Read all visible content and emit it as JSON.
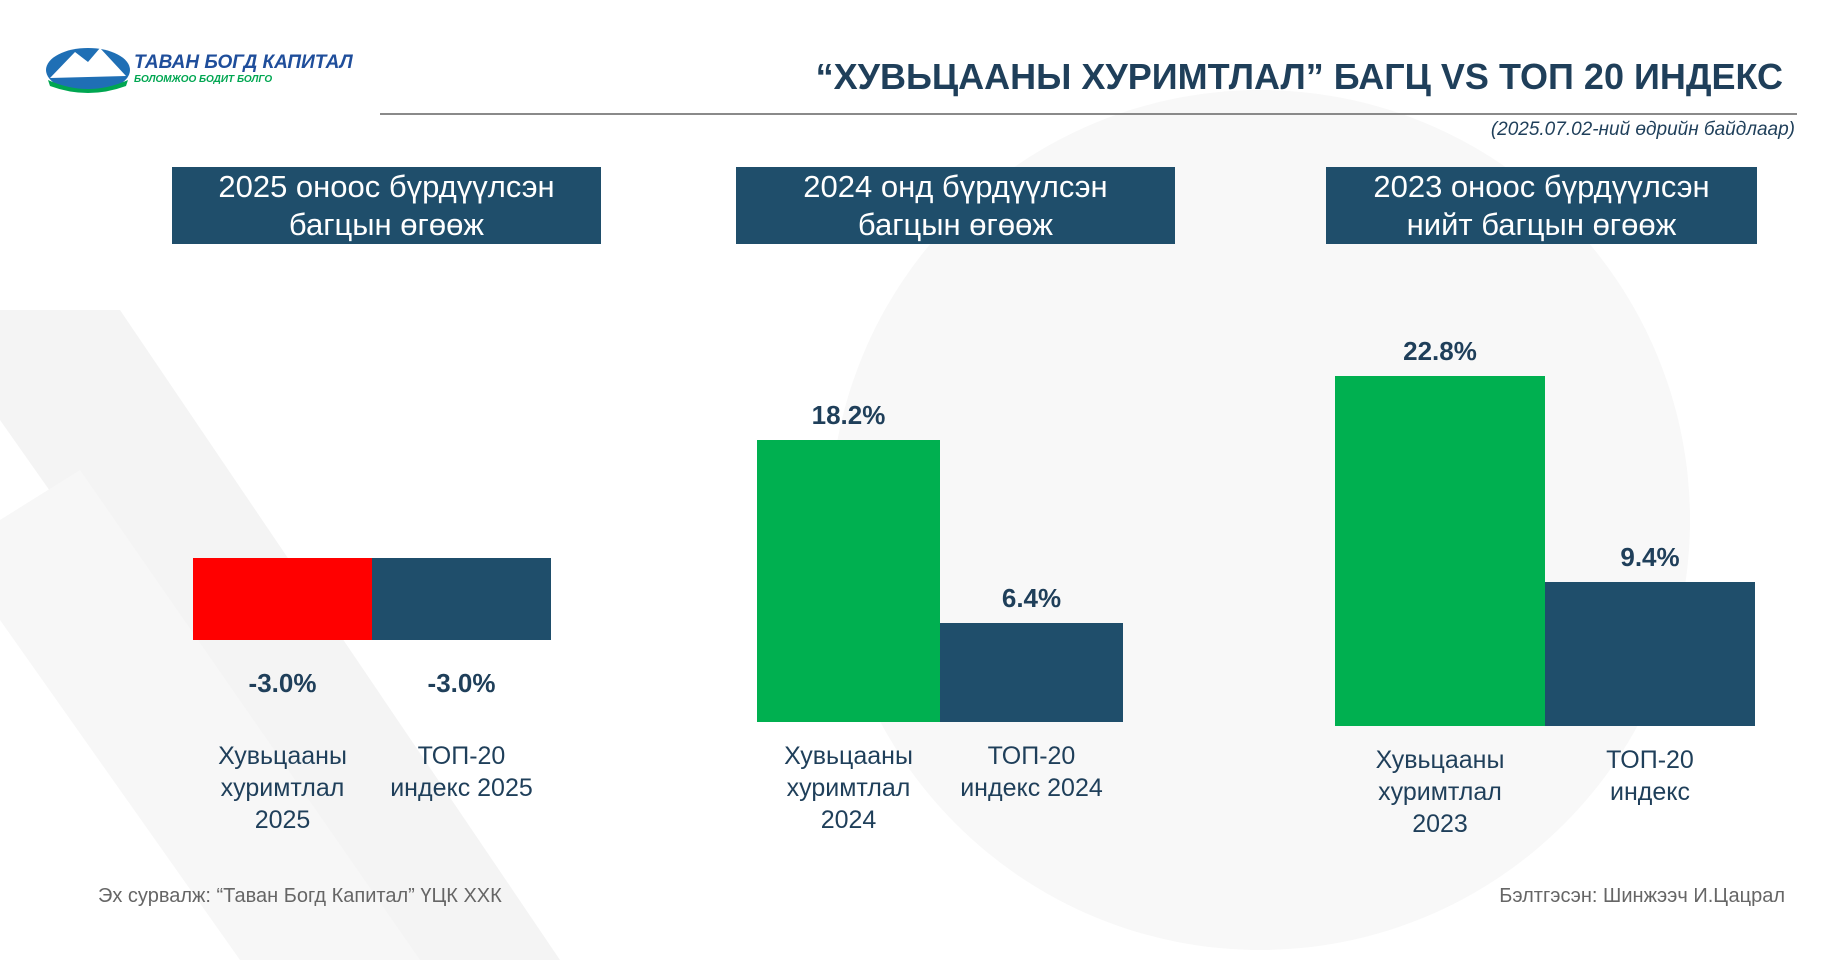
{
  "logo": {
    "name": "ТАВАН БОГД КАПИТАЛ",
    "tagline": "БОЛОМЖОО БОДИТ БОЛГО"
  },
  "title": "“ХУВЬЦААНЫ ХУРИМТЛАЛ” БАГЦ VS ТОП 20 ИНДЕКС",
  "subtitle": "(2025.07.02-ний өдрийн байдлаар)",
  "source": "Эх сурвалж: “Таван Богд Капитал” ҮЦК ХХК",
  "prepared_by": "Бэлтгэсэн: Шинжээч И.Цацрал",
  "chart_data": [
    {
      "type": "bar",
      "title": "2025 оноос бүрдүүлсэн багцын өгөөж",
      "categories": [
        "Хувьцааны хуримтлал 2025",
        "ТОП-20 индекс 2025"
      ],
      "values": [
        -3.0,
        -3.0
      ],
      "value_labels": [
        "-3.0%",
        "-3.0%"
      ],
      "colors": [
        "#ff0000",
        "#1f4e6b"
      ]
    },
    {
      "type": "bar",
      "title": "2024 онд бүрдүүлсэн багцын өгөөж",
      "categories": [
        "Хувьцааны хуримтлал 2024",
        "ТОП-20 индекс 2024"
      ],
      "values": [
        18.2,
        6.4
      ],
      "value_labels": [
        "18.2%",
        "6.4%"
      ],
      "colors": [
        "#00b050",
        "#1f4e6b"
      ]
    },
    {
      "type": "bar",
      "title": "2023 оноос бүрдүүлсэн нийт багцын өгөөж",
      "categories": [
        "Хувьцааны хуримтлал 2023",
        "ТОП-20 индекс"
      ],
      "values": [
        22.8,
        9.4
      ],
      "value_labels": [
        "22.8%",
        "9.4%"
      ],
      "colors": [
        "#00b050",
        "#1f4e6b"
      ]
    }
  ]
}
